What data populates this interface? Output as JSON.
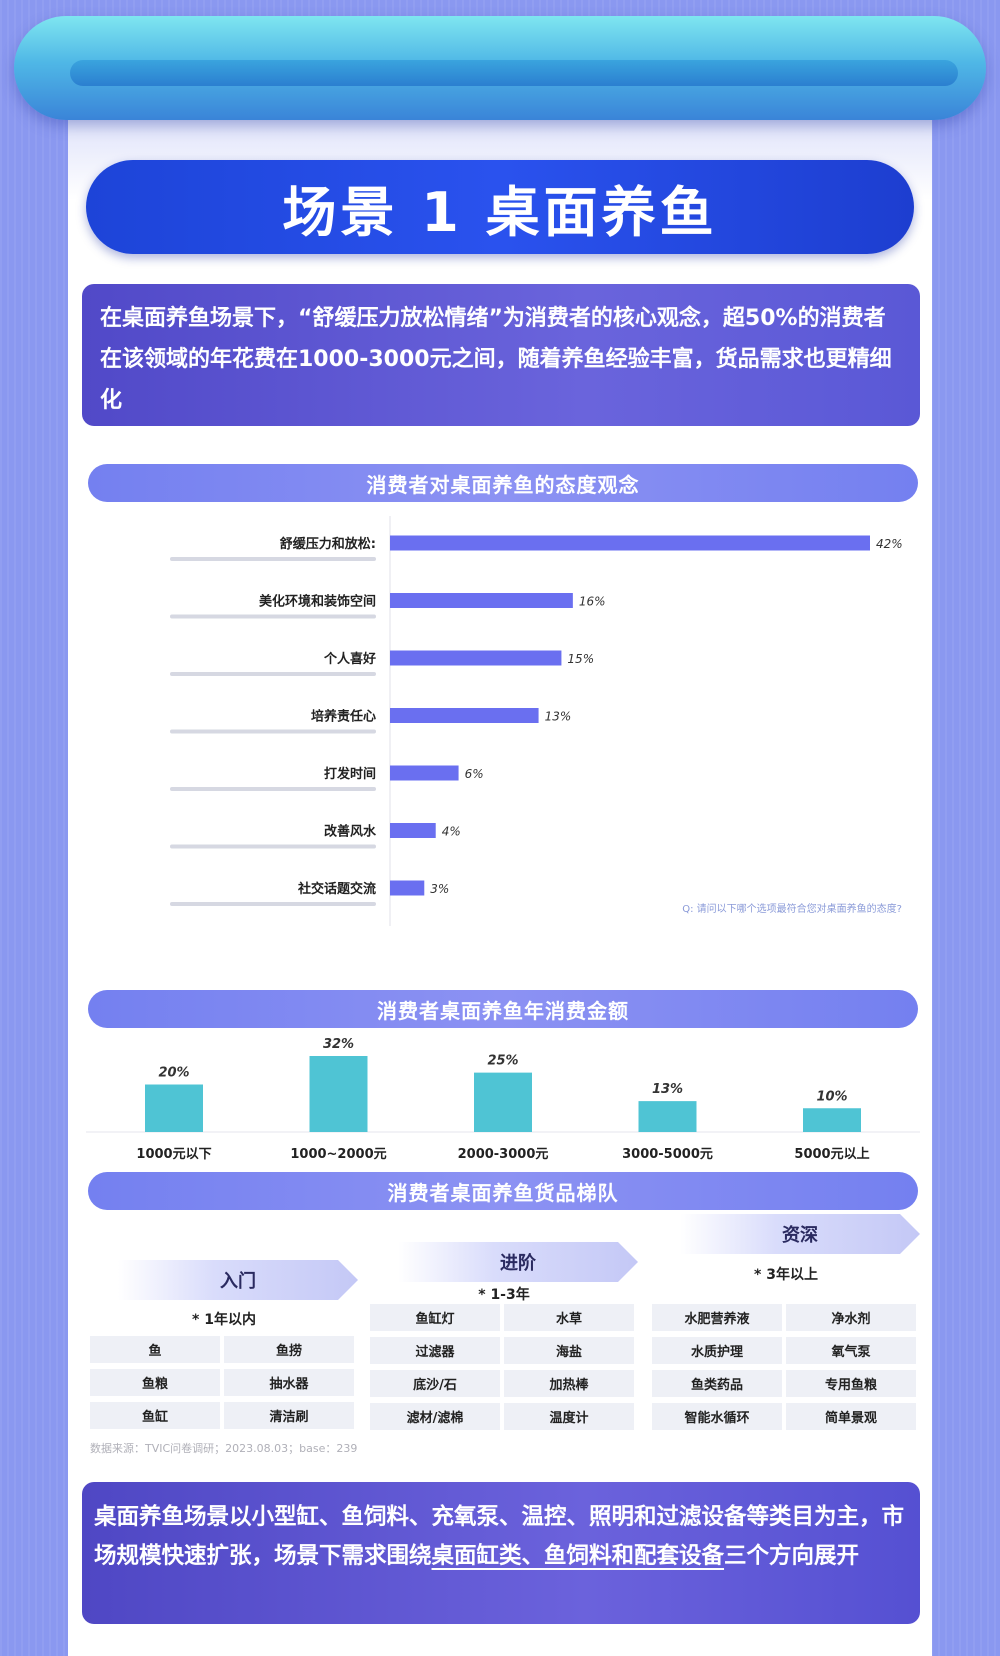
{
  "title": "场景 1  桌面养鱼",
  "intro": "在桌面养鱼场景下，“舒缓压力放松情绪”为消费者的核心观念，超50%的消费者在该领域的年花费在1000-3000元之间，随着养鱼经验丰富，货品需求也更精细化",
  "section1": {
    "title": "消费者对桌面养鱼的态度观念"
  },
  "section2": {
    "title": "消费者桌面养鱼年消费金额"
  },
  "section3": {
    "title": "消费者桌面养鱼货品梯队"
  },
  "colors": {
    "bar_blue": "#6a6ff0",
    "bar_teal": "#4fc4d4",
    "banner": "#2246e0",
    "pill": "#7c86f0",
    "box": "#5c55d0"
  },
  "chart_data": [
    {
      "type": "bar",
      "orientation": "horizontal",
      "title": "消费者对桌面养鱼的态度观念",
      "categories": [
        "舒缓压力和放松",
        "美化环境和装饰空间",
        "个人喜好",
        "培养责任心",
        "打发时间",
        "改善风水",
        "社交话题交流"
      ],
      "category_labels": [
        "舒缓压力和放松:",
        "美化环境和装饰空间",
        "个人喜好",
        "培养责任心",
        "打发时间",
        "改善风水",
        "社交话题交流"
      ],
      "values": [
        42,
        16,
        15,
        13,
        6,
        4,
        3
      ],
      "value_labels": [
        "42%",
        "16%",
        "15%",
        "13%",
        "6%",
        "4%",
        "3%"
      ],
      "unit": "%",
      "xlim": [
        0,
        42
      ],
      "grid": false,
      "question_note": "Q: 请问以下哪个选项最符合您对桌面养鱼的态度?"
    },
    {
      "type": "bar",
      "title": "消费者桌面养鱼年消费金额",
      "categories": [
        "1000元以下",
        "1000~2000元",
        "2000-3000元",
        "3000-5000元",
        "5000元以上"
      ],
      "values": [
        20,
        32,
        25,
        13,
        10
      ],
      "value_labels": [
        "20%",
        "32%",
        "25%",
        "13%",
        "10%"
      ],
      "unit": "%",
      "ylim": [
        0,
        32
      ],
      "grid": false
    }
  ],
  "tiers": [
    {
      "name": "入门",
      "years": "* 1年以内",
      "items": [
        [
          "鱼",
          "鱼捞"
        ],
        [
          "鱼粮",
          "抽水器"
        ],
        [
          "鱼缸",
          "清洁刷"
        ]
      ]
    },
    {
      "name": "进阶",
      "years": "* 1-3年",
      "items": [
        [
          "鱼缸灯",
          "水草"
        ],
        [
          "过滤器",
          "海盐"
        ],
        [
          "底沙/石",
          "加热棒"
        ],
        [
          "滤材/滤棉",
          "温度计"
        ]
      ]
    },
    {
      "name": "资深",
      "years": "* 3年以上",
      "items": [
        [
          "水肥营养液",
          "净水剂"
        ],
        [
          "水质护理",
          "氧气泵"
        ],
        [
          "鱼类药品",
          "专用鱼粮"
        ],
        [
          "智能水循环",
          "简单景观"
        ]
      ]
    }
  ],
  "source": "数据来源：TVIC问卷调研；2023.08.03；base：239",
  "conclusion": {
    "part1": "桌面养鱼场景以小型缸、鱼饲料、充氧泵、温控、照明和过滤设备等类目为主，市场规模快速扩张，场景下需求围绕",
    "underlined": "桌面缸类、鱼饲料和配套设备",
    "part2": "三个方向展开"
  }
}
